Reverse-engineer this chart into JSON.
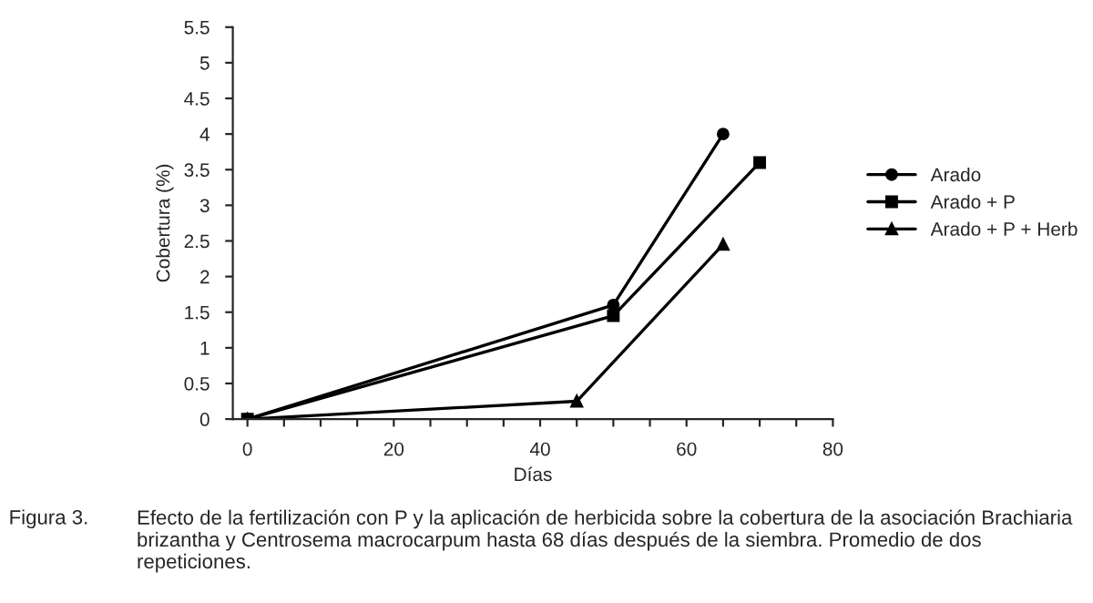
{
  "chart_data": {
    "type": "line",
    "xlabel": "Días",
    "ylabel": "Cobertura (%)",
    "xlim": [
      -2,
      80
    ],
    "ylim": [
      0,
      5.5
    ],
    "xticks": [
      0,
      {
        "value": 5,
        "label": null
      },
      {
        "value": 10,
        "label": null
      },
      {
        "value": 15,
        "label": null
      },
      20,
      {
        "value": 25,
        "label": null
      },
      {
        "value": 30,
        "label": null
      },
      {
        "value": 35,
        "label": null
      },
      40,
      {
        "value": 45,
        "label": null
      },
      {
        "value": 50,
        "label": null
      },
      {
        "value": 55,
        "label": null
      },
      60,
      {
        "value": 65,
        "label": null
      },
      {
        "value": 70,
        "label": null
      },
      {
        "value": 75,
        "label": null
      },
      80
    ],
    "yticks": [
      0,
      0.5,
      1,
      1.5,
      2,
      2.5,
      3,
      3.5,
      4,
      4.5,
      5,
      5.5
    ],
    "grid": false,
    "legend": "right",
    "series": [
      {
        "name": "Arado",
        "color": "#000000",
        "marker": "circle",
        "x": [
          0,
          50,
          65
        ],
        "values": [
          0,
          1.6,
          4.0
        ]
      },
      {
        "name": "Arado + P",
        "color": "#000000",
        "marker": "square",
        "x": [
          0,
          50,
          70
        ],
        "values": [
          0,
          1.45,
          3.6
        ]
      },
      {
        "name": "Arado + P + Herb",
        "color": "#000000",
        "marker": "triangle",
        "x": [
          0,
          45,
          65
        ],
        "values": [
          0,
          0.25,
          2.45
        ]
      }
    ],
    "annotations": [
      "Figura 3.",
      "Efecto de la fertilización con P y la aplicación de herbicida sobre la cobertura de la asociación Brachiaria brizantha y Centrosema macrocarpum hasta 68 días después de la siembra. Promedio de dos repeticiones."
    ]
  }
}
